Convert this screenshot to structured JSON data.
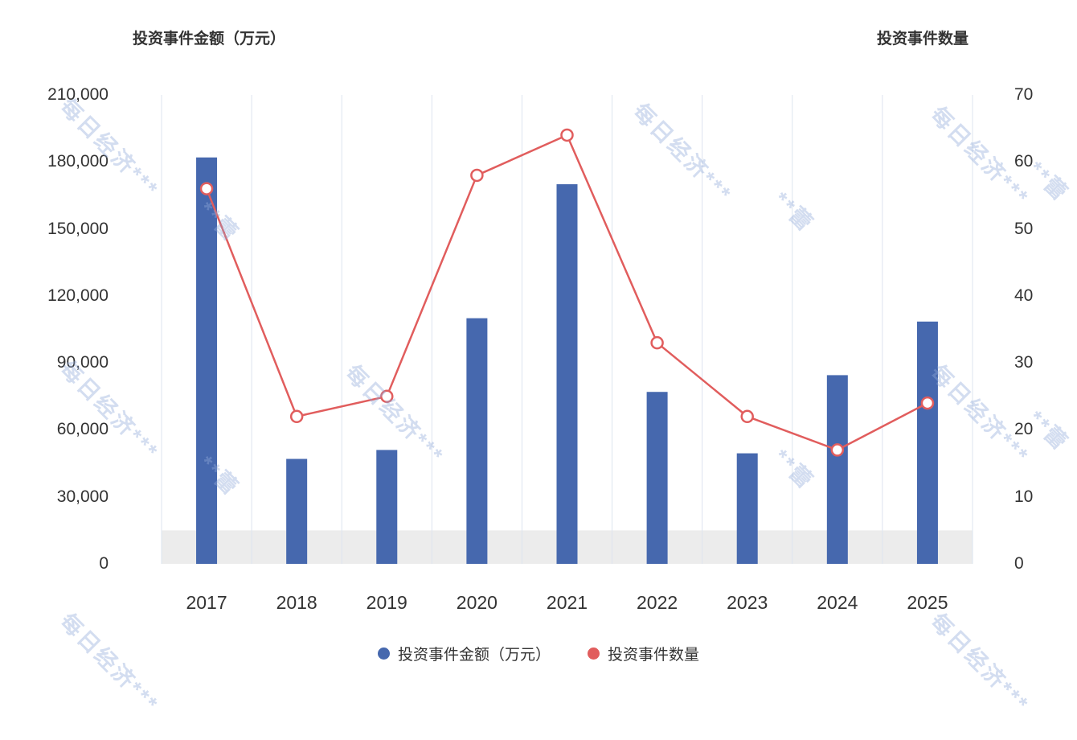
{
  "titles": {
    "left_axis_title": "投资事件金额（万元）",
    "right_axis_title": "投资事件数量"
  },
  "legend": [
    {
      "label": "投资事件金额（万元）",
      "color": "#4668ae",
      "type": "bar"
    },
    {
      "label": "投资事件数量",
      "color": "#e15d5d",
      "type": "line"
    }
  ],
  "watermark": {
    "main": "每日经济***",
    "sub": "**蕾"
  },
  "chart_data": {
    "type": "bar",
    "subtype": "bar+line dual axis",
    "categories": [
      "2017",
      "2018",
      "2019",
      "2020",
      "2021",
      "2022",
      "2023",
      "2024",
      "2025"
    ],
    "series": [
      {
        "name": "投资事件金额（万元）",
        "type": "bar",
        "axis": "left",
        "color": "#4668ae",
        "values": [
          182000,
          47000,
          51000,
          110000,
          170000,
          77000,
          49500,
          84500,
          108500
        ]
      },
      {
        "name": "投资事件数量",
        "type": "line",
        "axis": "right",
        "color": "#e15d5d",
        "marker": "open-circle",
        "values": [
          56,
          22,
          25,
          58,
          64,
          33,
          22,
          17,
          24
        ]
      }
    ],
    "left_axis": {
      "title": "投资事件金额（万元）",
      "min": 0,
      "max": 210000,
      "tick_step": 30000,
      "tick_labels": [
        "0",
        "30,000",
        "60,000",
        "90,000",
        "120,000",
        "150,000",
        "180,000",
        "210,000"
      ]
    },
    "right_axis": {
      "title": "投资事件数量",
      "min": 0,
      "max": 70,
      "tick_step": 10,
      "tick_labels": [
        "0",
        "10",
        "20",
        "30",
        "40",
        "50",
        "60",
        "70"
      ]
    },
    "grid": "vertical-only",
    "grid_color": "#dde4ef",
    "legend_position": "bottom-center",
    "datazoom_band": {
      "from": 0,
      "to": 15000,
      "color": "#ececec"
    }
  }
}
